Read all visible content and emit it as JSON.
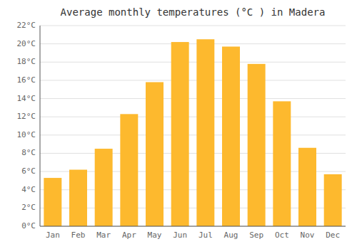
{
  "chart_data": {
    "type": "bar",
    "title": "Average monthly temperatures (°C ) in Madera",
    "categories": [
      "Jan",
      "Feb",
      "Mar",
      "Apr",
      "May",
      "Jun",
      "Jul",
      "Aug",
      "Sep",
      "Oct",
      "Nov",
      "Dec"
    ],
    "values": [
      5.3,
      6.2,
      8.5,
      12.3,
      15.8,
      20.2,
      20.5,
      19.7,
      17.8,
      13.7,
      8.6,
      5.7
    ],
    "color": "#FDB92E",
    "ylim": [
      0,
      22
    ],
    "yticks": [
      {
        "value": 0,
        "label": "0°C"
      },
      {
        "value": 2,
        "label": "2°C"
      },
      {
        "value": 4,
        "label": "4°C"
      },
      {
        "value": 6,
        "label": "6°C"
      },
      {
        "value": 8,
        "label": "8°C"
      },
      {
        "value": 10,
        "label": "10°C"
      },
      {
        "value": 12,
        "label": "12°C"
      },
      {
        "value": 14,
        "label": "14°C"
      },
      {
        "value": 16,
        "label": "16°C"
      },
      {
        "value": 18,
        "label": "18°C"
      },
      {
        "value": 20,
        "label": "20°C"
      },
      {
        "value": 22,
        "label": "22°C"
      }
    ],
    "grid": true
  }
}
